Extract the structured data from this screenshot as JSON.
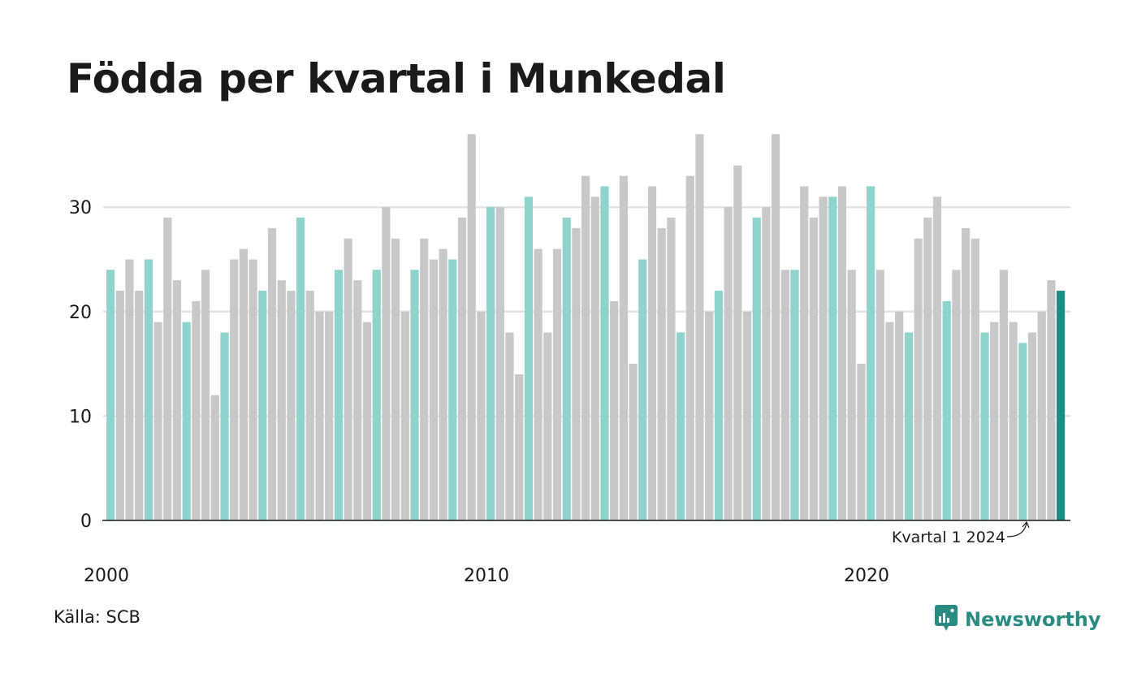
{
  "title": "Födda per kvartal i Munkedal",
  "source": "Källa: SCB",
  "brand": {
    "name": "Newsworthy",
    "icon": "newsworthy-logo-icon"
  },
  "colors": {
    "bar_default": "#c8c8c8",
    "bar_q1": "#8ed3cc",
    "bar_highlight": "#1a8f86",
    "grid": "#e2e2e2",
    "axis": "#1a1a1a",
    "brand": "#2a8b82"
  },
  "chart_data": {
    "type": "bar",
    "start_year": 2000,
    "values": [
      24,
      22,
      25,
      22,
      25,
      19,
      29,
      23,
      19,
      21,
      24,
      12,
      18,
      25,
      26,
      25,
      22,
      28,
      23,
      22,
      29,
      22,
      20,
      20,
      24,
      27,
      23,
      19,
      24,
      30,
      27,
      20,
      24,
      27,
      25,
      26,
      25,
      29,
      37,
      20,
      30,
      30,
      18,
      14,
      31,
      26,
      18,
      26,
      29,
      28,
      33,
      31,
      32,
      21,
      33,
      15,
      25,
      32,
      28,
      29,
      18,
      33,
      37,
      20,
      22,
      30,
      34,
      20,
      29,
      30,
      37,
      24,
      24,
      32,
      29,
      31,
      31,
      32,
      24,
      15,
      32,
      24,
      19,
      20,
      18,
      27,
      29,
      31,
      21,
      24,
      28,
      27,
      18,
      19,
      24,
      19,
      17,
      18,
      20,
      23,
      22
    ],
    "yticks": [
      0,
      10,
      20,
      30
    ],
    "ylim": [
      0,
      37
    ],
    "xtick_labels": [
      "2000",
      "2010",
      "2020"
    ],
    "grid": true,
    "annotation": "Kvartal 1 2024",
    "xlabel": "",
    "ylabel": ""
  }
}
